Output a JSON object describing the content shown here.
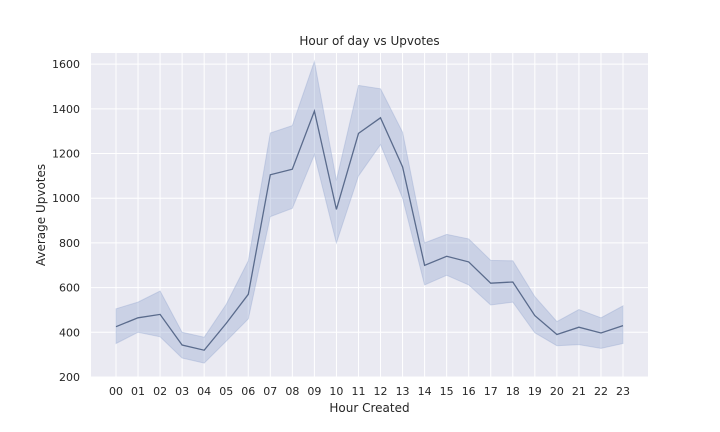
{
  "chart_data": {
    "type": "line",
    "title": "Hour of day vs Upvotes",
    "xlabel": "Hour Created",
    "ylabel": "Average Upvotes",
    "categories": [
      "00",
      "01",
      "02",
      "03",
      "04",
      "05",
      "06",
      "07",
      "08",
      "09",
      "10",
      "11",
      "12",
      "13",
      "14",
      "15",
      "16",
      "17",
      "18",
      "19",
      "20",
      "21",
      "22",
      "23"
    ],
    "series": [
      {
        "name": "Average Upvotes",
        "values": [
          425,
          465,
          480,
          343,
          320,
          440,
          570,
          1105,
          1130,
          1390,
          950,
          1290,
          1360,
          1140,
          700,
          740,
          715,
          620,
          625,
          475,
          390,
          423,
          397,
          430
        ],
        "ci_lower": [
          350,
          400,
          380,
          285,
          262,
          360,
          460,
          918,
          955,
          1195,
          800,
          1100,
          1240,
          1000,
          612,
          655,
          612,
          522,
          535,
          398,
          340,
          345,
          328,
          350
        ],
        "ci_upper": [
          505,
          535,
          585,
          400,
          378,
          525,
          720,
          1292,
          1325,
          1612,
          1080,
          1505,
          1490,
          1295,
          800,
          838,
          818,
          722,
          720,
          560,
          448,
          502,
          465,
          518
        ]
      }
    ],
    "ylim": [
      200,
      1650
    ],
    "yticks": [
      200,
      400,
      600,
      800,
      1000,
      1200,
      1400,
      1600
    ],
    "grid": true,
    "colors": {
      "background": "#eaeaf2",
      "grid": "#ffffff",
      "line": "#5a6b8c",
      "band": "#8fa3cf",
      "text": "#262626"
    }
  }
}
